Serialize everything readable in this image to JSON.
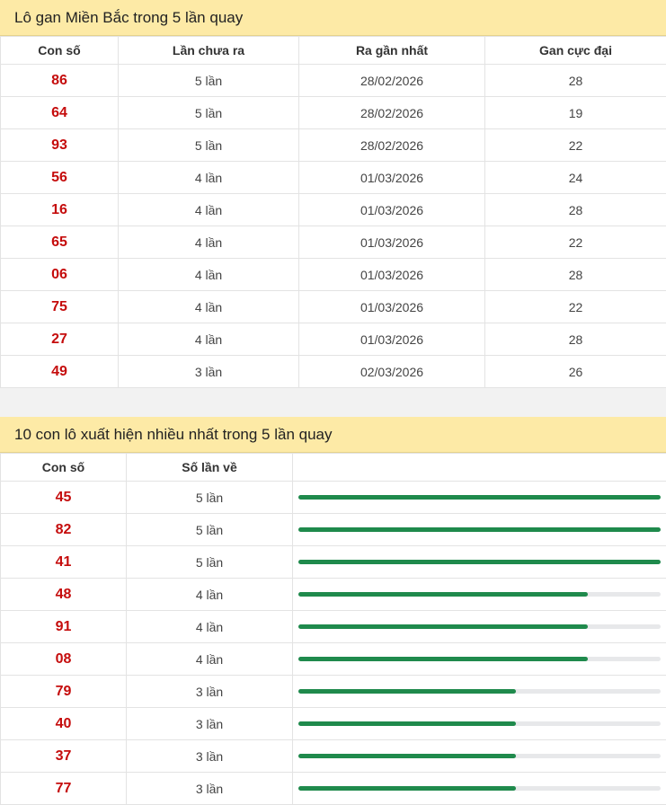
{
  "gan_panel": {
    "title": "Lô gan Miền Bắc trong 5 lần quay",
    "headers": [
      "Con số",
      "Lần chưa ra",
      "Ra gần nhất",
      "Gan cực đại"
    ],
    "rows": [
      {
        "num": "86",
        "absent": "5 lần",
        "last": "28/02/2026",
        "max": "28"
      },
      {
        "num": "64",
        "absent": "5 lần",
        "last": "28/02/2026",
        "max": "19"
      },
      {
        "num": "93",
        "absent": "5 lần",
        "last": "28/02/2026",
        "max": "22"
      },
      {
        "num": "56",
        "absent": "4 lần",
        "last": "01/03/2026",
        "max": "24"
      },
      {
        "num": "16",
        "absent": "4 lần",
        "last": "01/03/2026",
        "max": "28"
      },
      {
        "num": "65",
        "absent": "4 lần",
        "last": "01/03/2026",
        "max": "22"
      },
      {
        "num": "06",
        "absent": "4 lần",
        "last": "01/03/2026",
        "max": "28"
      },
      {
        "num": "75",
        "absent": "4 lần",
        "last": "01/03/2026",
        "max": "22"
      },
      {
        "num": "27",
        "absent": "4 lần",
        "last": "01/03/2026",
        "max": "28"
      },
      {
        "num": "49",
        "absent": "3 lần",
        "last": "02/03/2026",
        "max": "26"
      }
    ]
  },
  "freq_panel": {
    "title": "10 con lô xuất hiện nhiều nhất trong 5 lần quay",
    "headers": [
      "Con số",
      "Số lần về",
      ""
    ],
    "rows": [
      {
        "num": "45",
        "count": "5 lần",
        "fraction": 1.0
      },
      {
        "num": "82",
        "count": "5 lần",
        "fraction": 1.0
      },
      {
        "num": "41",
        "count": "5 lần",
        "fraction": 1.0
      },
      {
        "num": "48",
        "count": "4 lần",
        "fraction": 0.8
      },
      {
        "num": "91",
        "count": "4 lần",
        "fraction": 0.8
      },
      {
        "num": "08",
        "count": "4 lần",
        "fraction": 0.8
      },
      {
        "num": "79",
        "count": "3 lần",
        "fraction": 0.6
      },
      {
        "num": "40",
        "count": "3 lần",
        "fraction": 0.6
      },
      {
        "num": "37",
        "count": "3 lần",
        "fraction": 0.6
      },
      {
        "num": "77",
        "count": "3 lần",
        "fraction": 0.6
      }
    ]
  },
  "colors": {
    "number": "#c50c0c",
    "bar": "#1f8a4c",
    "header_bg": "#fdeaa6"
  }
}
